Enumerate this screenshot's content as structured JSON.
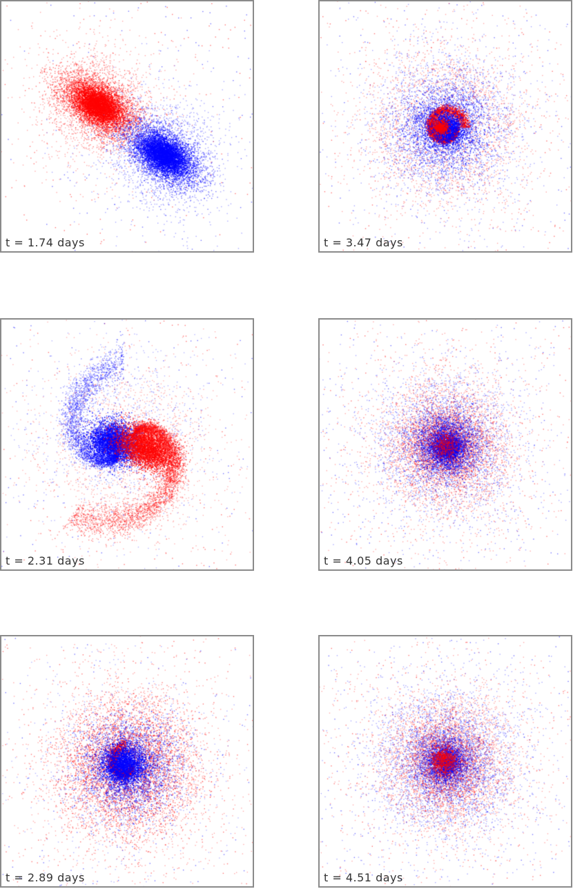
{
  "colors": {
    "population_a": "#ff0000",
    "population_b": "#0000ff",
    "frame": "#8a8a8a",
    "label": "#333333"
  },
  "panels": [
    {
      "id": "p1",
      "label": "t = 1.74 days",
      "stage": "separated"
    },
    {
      "id": "p2",
      "label": "t = 3.47 days",
      "stage": "merged-ring"
    },
    {
      "id": "p3",
      "label": "t = 2.31 days",
      "stage": "interacting"
    },
    {
      "id": "p4",
      "label": "t = 4.05 days",
      "stage": "merged"
    },
    {
      "id": "p5",
      "label": "t = 2.89 days",
      "stage": "spiral"
    },
    {
      "id": "p6",
      "label": "t = 4.51 days",
      "stage": "relaxed"
    }
  ]
}
